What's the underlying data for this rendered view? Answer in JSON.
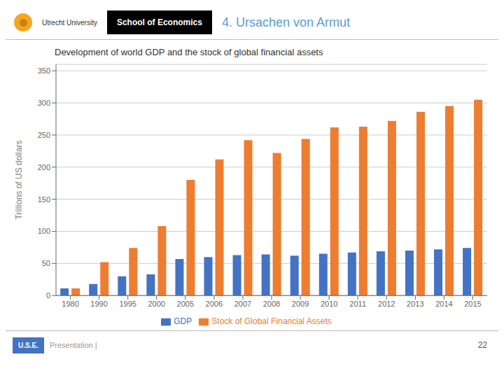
{
  "chart_data": {
    "type": "bar",
    "title": "Development of world GDP and the stock of global financial assets",
    "y_label": "Trillions of US dollars",
    "categories": [
      "1980",
      "1990",
      "1995",
      "2000",
      "2005",
      "2006",
      "2007",
      "2008",
      "2009",
      "2010",
      "2011",
      "2012",
      "2013",
      "2014",
      "2015"
    ],
    "series": [
      {
        "name": "GDP",
        "color": "#4472C4",
        "values": [
          11,
          18,
          30,
          33,
          57,
          60,
          63,
          64,
          62,
          65,
          67,
          69,
          70,
          72,
          74
        ]
      },
      {
        "name": "Stock of Global Financial Assets",
        "color": "#ED7D31",
        "values": [
          11,
          52,
          74,
          108,
          180,
          212,
          242,
          222,
          244,
          262,
          263,
          272,
          286,
          295,
          305
        ]
      }
    ],
    "ylim": [
      0,
      360
    ],
    "yticks": [
      0,
      50,
      100,
      150,
      200,
      250,
      300,
      350
    ],
    "grid": true,
    "legend": "bottom",
    "annotations": [
      "Utrecht University",
      "School of Economics",
      "4. Ursachen von Armut",
      "U.S.E.",
      "Presentation |",
      "22"
    ]
  }
}
